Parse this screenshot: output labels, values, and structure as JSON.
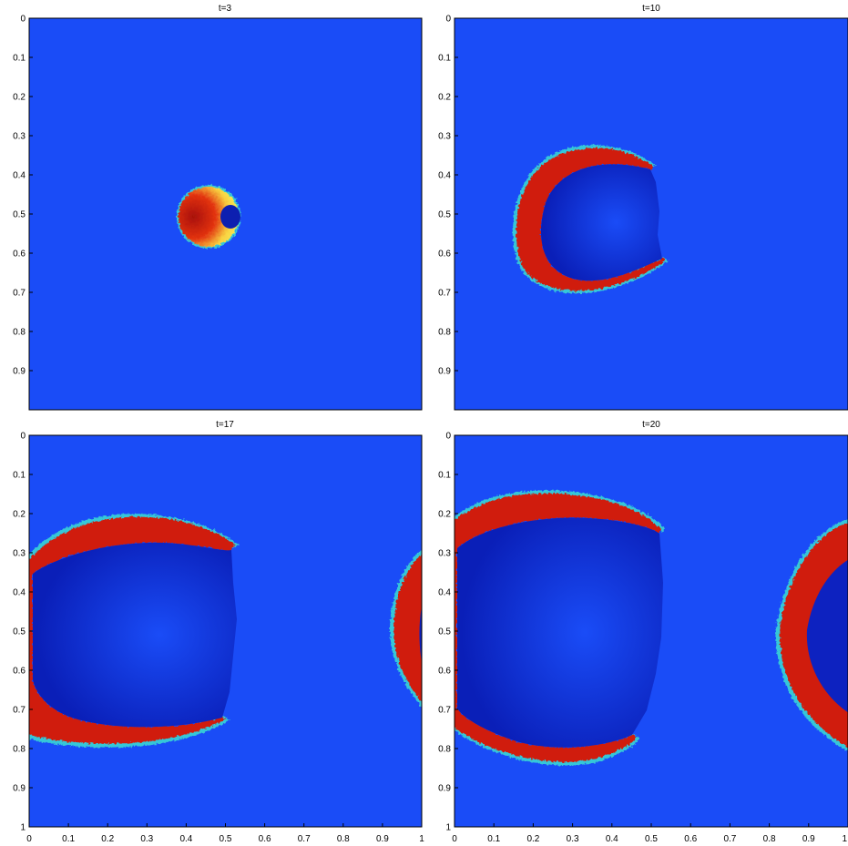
{
  "figure": {
    "colors": {
      "background_field": "#1a4cf7",
      "ring_outer": "#c8140a",
      "ring_inner": "#f03a12",
      "ring_edge": "#f9e84a",
      "ring_fringe": "#35c7d8",
      "interior": "#0f2fdc",
      "interior_deep": "#0a1fb8"
    },
    "panels": [
      {
        "title": "t=3",
        "y_ticks": [
          "0",
          "0.1",
          "0.2",
          "0.3",
          "0.4",
          "0.5",
          "0.6",
          "0.7",
          "0.8",
          "0.9"
        ],
        "x_ticks": []
      },
      {
        "title": "t=10",
        "y_ticks": [
          "0",
          "0.1",
          "0.2",
          "0.3",
          "0.4",
          "0.5",
          "0.6",
          "0.7",
          "0.8",
          "0.9"
        ],
        "x_ticks": []
      },
      {
        "title": "t=17",
        "y_ticks": [
          "0",
          "0.1",
          "0.2",
          "0.3",
          "0.4",
          "0.5",
          "0.6",
          "0.7",
          "0.8",
          "0.9",
          "1"
        ],
        "x_ticks": [
          "0",
          "0.1",
          "0.2",
          "0.3",
          "0.4",
          "0.5",
          "0.6",
          "0.7",
          "0.8",
          "0.9",
          "1"
        ]
      },
      {
        "title": "t=20",
        "y_ticks": [
          "0",
          "0.1",
          "0.2",
          "0.3",
          "0.4",
          "0.5",
          "0.6",
          "0.7",
          "0.8",
          "0.9",
          "1"
        ],
        "x_ticks": [
          "0",
          "0.1",
          "0.2",
          "0.3",
          "0.4",
          "0.5",
          "0.6",
          "0.7",
          "0.8",
          "0.9",
          "1"
        ]
      }
    ]
  }
}
